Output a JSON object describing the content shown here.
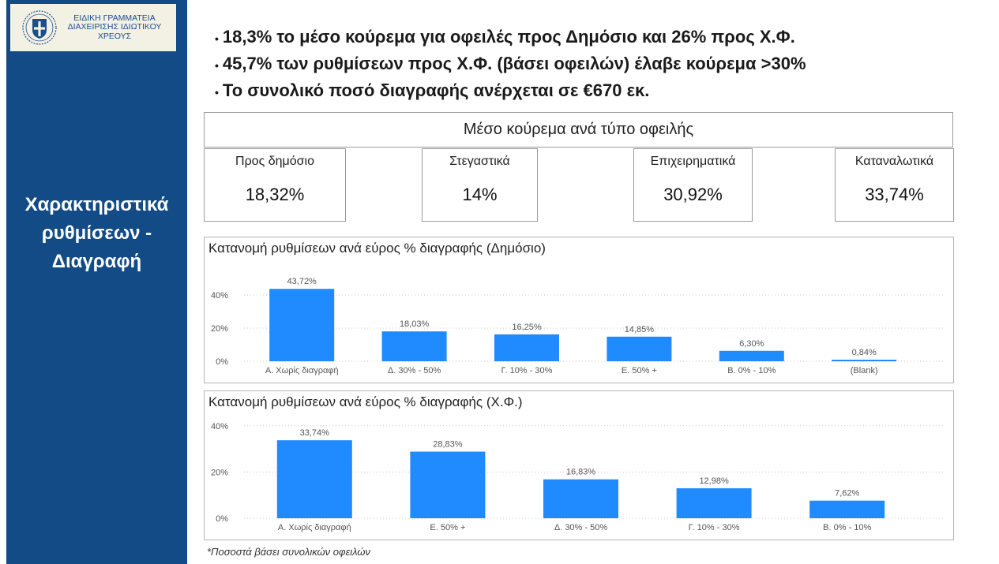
{
  "logo": {
    "lines": [
      "ΕΙΔΙΚΗ ΓΡΑΜΜΑΤΕΙΑ",
      "ΔΙΑΧΕΙΡΙΣΗΣ ΙΔΙΩΤΙΚΟΥ",
      "ΧΡΕΟΥΣ"
    ]
  },
  "sidebar": {
    "title_lines": [
      "Χαρακτηριστικά",
      "ρυθμίσεων -",
      "Διαγραφή"
    ]
  },
  "bullets": [
    "18,3% το μέσο κούρεμα για οφειλές προς Δημόσιο και 26% προς Χ.Φ.",
    "45,7% των ρυθμίσεων προς Χ.Φ. (βάσει οφειλών) έλαβε κούρεμα >30%",
    "Το συνολικό ποσό διαγραφής ανέρχεται σε €670 εκ."
  ],
  "kpi": {
    "header": "Μέσο κούρεμα ανά τύπο οφειλής",
    "cards": [
      {
        "label": "Προς δημόσιο",
        "value": "18,32%"
      },
      {
        "label": "Στεγαστικά",
        "value": "14%"
      },
      {
        "label": "Επιχειρηματικά",
        "value": "30,92%"
      },
      {
        "label": "Καταναλωτικά",
        "value": "33,74%"
      }
    ]
  },
  "chart_data": [
    {
      "type": "bar",
      "title": "Κατανομή ρυθμίσεων ανά εύρος % διαγραφής (Δημόσιο)",
      "categories": [
        "Α. Χωρίς διαγραφή",
        "Δ. 30% - 50%",
        "Γ. 10% - 30%",
        "Ε. 50% +",
        "Β. 0% - 10%",
        "(Blank)"
      ],
      "values": [
        43.72,
        18.03,
        16.25,
        14.85,
        6.3,
        0.84
      ],
      "value_labels": [
        "43,72%",
        "18,03%",
        "16,25%",
        "14,85%",
        "6,30%",
        "0,84%"
      ],
      "y_ticks": [
        0,
        20,
        40
      ],
      "y_tick_labels": [
        "0%",
        "20%",
        "40%"
      ],
      "ylim": [
        0,
        40
      ],
      "grid": true,
      "color": "#1f8bff"
    },
    {
      "type": "bar",
      "title": "Κατανομή ρυθμίσεων ανά εύρος % διαγραφής (Χ.Φ.)",
      "categories": [
        "Α. Χωρίς διαγραφή",
        "Ε. 50% +",
        "Δ. 30% - 50%",
        "Γ. 10% - 30%",
        "Β. 0% - 10%"
      ],
      "values": [
        33.74,
        28.83,
        16.83,
        12.98,
        7.62
      ],
      "value_labels": [
        "33,74%",
        "28,83%",
        "16,83%",
        "12,98%",
        "7,62%"
      ],
      "y_ticks": [
        0,
        20,
        40
      ],
      "y_tick_labels": [
        "0%",
        "20%",
        "40%"
      ],
      "ylim": [
        0,
        40
      ],
      "grid": true,
      "color": "#1f8bff"
    }
  ],
  "footnote": "*Ποσοστά βάσει συνολικών οφειλών"
}
